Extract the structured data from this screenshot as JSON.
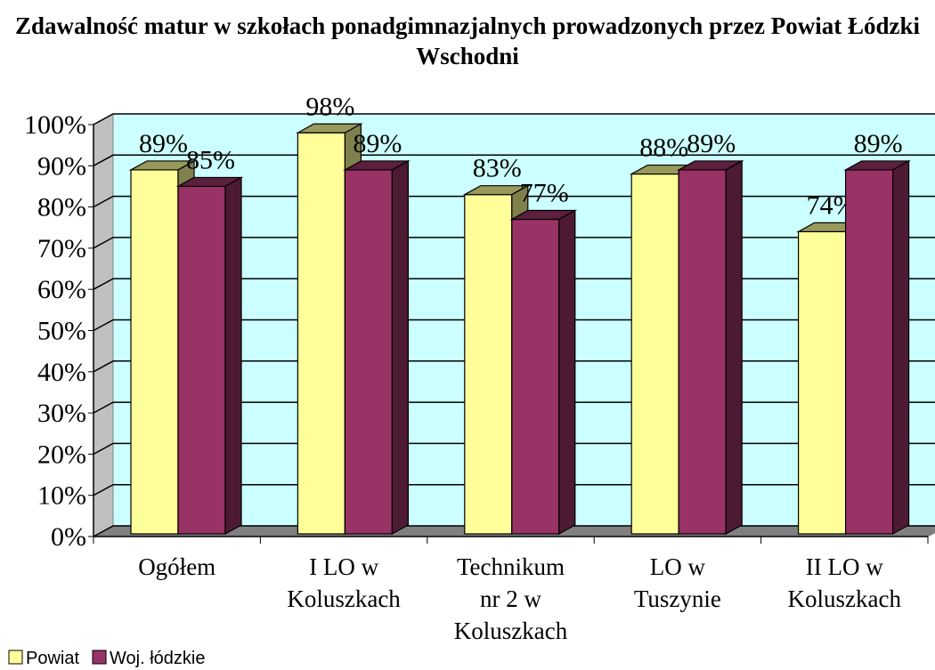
{
  "chart_data": {
    "type": "bar3d",
    "title": "Zdawalność matur w szkołach ponadgimnazjalnych prowadzonych przez Powiat Łódzki Wschodni",
    "categories": [
      "Ogółem",
      "I LO w Koluszkach",
      "Technikum nr 2 w Koluszkach",
      "LO w Tuszynie",
      "II LO w Koluszkach"
    ],
    "series": [
      {
        "name": "Powiat",
        "color": "#ffff99",
        "values": [
          89,
          98,
          83,
          88,
          74
        ],
        "value_labels": [
          "89%",
          "98%",
          "83%",
          "88%",
          "74%"
        ]
      },
      {
        "name": "Woj. łódzkie",
        "color": "#993366",
        "values": [
          85,
          89,
          77,
          89,
          89
        ],
        "value_labels": [
          "85%",
          "89%",
          "77%",
          "89%",
          "89%"
        ]
      }
    ],
    "ylim": [
      0,
      100
    ],
    "yticks": [
      {
        "value": 0,
        "label": "0%"
      },
      {
        "value": 10,
        "label": "10%"
      },
      {
        "value": 20,
        "label": "20%"
      },
      {
        "value": 30,
        "label": "30%"
      },
      {
        "value": 40,
        "label": "40%"
      },
      {
        "value": 50,
        "label": "50%"
      },
      {
        "value": 60,
        "label": "60%"
      },
      {
        "value": 70,
        "label": "70%"
      },
      {
        "value": 80,
        "label": "80%"
      },
      {
        "value": 90,
        "label": "90%"
      },
      {
        "value": 100,
        "label": "100%"
      }
    ],
    "grid": true,
    "legend": "bottom-left"
  }
}
